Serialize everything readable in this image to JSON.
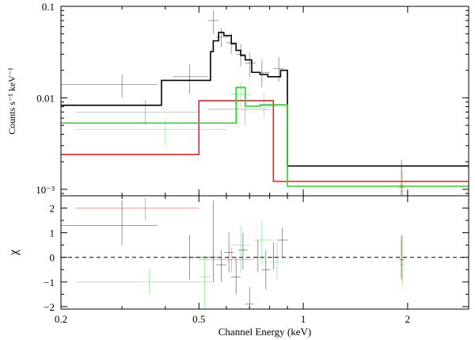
{
  "chart_data": [
    {
      "type": "step",
      "panel": "top",
      "xscale": "log",
      "yscale": "log",
      "xlim": [
        0.2,
        3.0
      ],
      "ylim": [
        0.00085,
        0.1
      ],
      "ylabel": "Counts s⁻¹ keV⁻¹",
      "yticks": [
        {
          "value": 0.1,
          "label": "0.1"
        },
        {
          "value": 0.01,
          "label": "0.01"
        },
        {
          "value": 0.001,
          "label": "10⁻³"
        }
      ],
      "series": [
        {
          "name": "model-black",
          "color": "#000000",
          "edges": [
            0.2,
            0.39,
            0.54,
            0.55,
            0.57,
            0.59,
            0.62,
            0.64,
            0.66,
            0.68,
            0.71,
            0.75,
            0.79,
            0.86,
            0.9,
            3.0
          ],
          "values": [
            0.0083,
            0.0155,
            0.032,
            0.042,
            0.052,
            0.048,
            0.039,
            0.033,
            0.029,
            0.026,
            0.019,
            0.018,
            0.017,
            0.02,
            0.0018
          ]
        },
        {
          "name": "model-red",
          "color": "#d62728",
          "edges": [
            0.2,
            0.5,
            0.82,
            3.0
          ],
          "values": [
            0.0024,
            0.0093,
            0.00122
          ]
        },
        {
          "name": "model-green",
          "color": "#22dd22",
          "edges": [
            0.2,
            0.64,
            0.68,
            0.75,
            0.9,
            3.0
          ],
          "values": [
            0.0053,
            0.013,
            0.0081,
            0.0084,
            0.00108
          ]
        }
      ],
      "data": [
        {
          "color": "#000000",
          "points": [
            {
              "x": 0.3,
              "xlo": 0.2,
              "xhi": 0.38,
              "y": 0.014,
              "ylo": 0.01,
              "yhi": 0.018
            },
            {
              "x": 0.47,
              "xlo": 0.42,
              "xhi": 0.53,
              "y": 0.017,
              "ylo": 0.011,
              "yhi": 0.023
            },
            {
              "x": 0.55,
              "xlo": 0.53,
              "xhi": 0.57,
              "y": 0.07,
              "ylo": 0.05,
              "yhi": 0.09
            },
            {
              "x": 0.58,
              "xlo": 0.56,
              "xhi": 0.61,
              "y": 0.046,
              "ylo": 0.036,
              "yhi": 0.058
            },
            {
              "x": 0.62,
              "xlo": 0.6,
              "xhi": 0.64,
              "y": 0.04,
              "ylo": 0.03,
              "yhi": 0.051
            },
            {
              "x": 0.66,
              "xlo": 0.64,
              "xhi": 0.68,
              "y": 0.03,
              "ylo": 0.022,
              "yhi": 0.039
            },
            {
              "x": 0.7,
              "xlo": 0.68,
              "xhi": 0.73,
              "y": 0.024,
              "ylo": 0.017,
              "yhi": 0.031
            },
            {
              "x": 0.76,
              "xlo": 0.73,
              "xhi": 0.8,
              "y": 0.019,
              "ylo": 0.013,
              "yhi": 0.026
            },
            {
              "x": 0.85,
              "xlo": 0.82,
              "xhi": 0.88,
              "y": 0.021,
              "ylo": 0.015,
              "yhi": 0.028
            },
            {
              "x": 1.92,
              "xlo": 1.9,
              "xhi": 1.95,
              "y": 0.0011,
              "ylo": 0.0007,
              "yhi": 0.0021
            }
          ]
        },
        {
          "color": "#d62728",
          "points": [
            {
              "x": 0.35,
              "xlo": 0.22,
              "xhi": 0.5,
              "y": 0.007,
              "ylo": 0.005,
              "yhi": 0.0095
            },
            {
              "x": 0.68,
              "xlo": 0.53,
              "xhi": 0.8,
              "y": 0.0075,
              "ylo": 0.005,
              "yhi": 0.01
            },
            {
              "x": 1.92,
              "xlo": 1.88,
              "xhi": 1.96,
              "y": 0.00105,
              "ylo": 0.0006,
              "yhi": 0.0018
            }
          ]
        },
        {
          "color": "#22dd22",
          "points": [
            {
              "x": 0.4,
              "xlo": 0.22,
              "xhi": 0.6,
              "y": 0.0045,
              "ylo": 0.003,
              "yhi": 0.006
            },
            {
              "x": 0.66,
              "xlo": 0.62,
              "xhi": 0.7,
              "y": 0.011,
              "ylo": 0.008,
              "yhi": 0.015
            },
            {
              "x": 0.77,
              "xlo": 0.72,
              "xhi": 0.83,
              "y": 0.0082,
              "ylo": 0.006,
              "yhi": 0.011
            },
            {
              "x": 1.93,
              "xlo": 1.9,
              "xhi": 1.96,
              "y": 0.00095,
              "ylo": 0.0006,
              "yhi": 0.0016
            }
          ]
        }
      ]
    },
    {
      "type": "scatter-errorbar",
      "panel": "bottom",
      "xscale": "log",
      "xlim": [
        0.2,
        3.0
      ],
      "ylim": [
        -2.1,
        2.5
      ],
      "xlabel": "Channel Energy (keV)",
      "ylabel": "χ",
      "xticks": [
        {
          "value": 0.2,
          "label": "0.2"
        },
        {
          "value": 0.5,
          "label": "0.5"
        },
        {
          "value": 1,
          "label": "1"
        },
        {
          "value": 2,
          "label": "2"
        }
      ],
      "yticks": [
        {
          "value": 2,
          "label": "2"
        },
        {
          "value": 1,
          "label": "1"
        },
        {
          "value": 0,
          "label": "0"
        },
        {
          "value": -1,
          "label": "−1"
        },
        {
          "value": -2,
          "label": "−2"
        }
      ],
      "reference_line": {
        "y": 0,
        "style": "dashed"
      },
      "data": [
        {
          "color": "#000000",
          "points": [
            {
              "x": 0.3,
              "xlo": 0.2,
              "xhi": 0.38,
              "y": 1.3,
              "ylo": 0.5,
              "yhi": 2.3
            },
            {
              "x": 0.47,
              "xlo": 0.42,
              "xhi": 0.53,
              "y": 0.0,
              "ylo": -0.9,
              "yhi": 0.9
            },
            {
              "x": 0.55,
              "xlo": 0.53,
              "xhi": 0.57,
              "y": 0.0,
              "ylo": -1.0,
              "yhi": 2.3
            },
            {
              "x": 0.58,
              "xlo": 0.56,
              "xhi": 0.6,
              "y": -0.3,
              "ylo": -1.0,
              "yhi": 0.3
            },
            {
              "x": 0.61,
              "xlo": 0.59,
              "xhi": 0.63,
              "y": 0.2,
              "ylo": -0.6,
              "yhi": 1.0
            },
            {
              "x": 0.64,
              "xlo": 0.62,
              "xhi": 0.66,
              "y": -0.8,
              "ylo": -1.5,
              "yhi": 0.0
            },
            {
              "x": 0.67,
              "xlo": 0.65,
              "xhi": 0.69,
              "y": 0.3,
              "ylo": -0.5,
              "yhi": 1.0
            },
            {
              "x": 0.7,
              "xlo": 0.68,
              "xhi": 0.72,
              "y": -1.9,
              "ylo": -2.1,
              "yhi": -1.2
            },
            {
              "x": 0.74,
              "xlo": 0.72,
              "xhi": 0.77,
              "y": 0.0,
              "ylo": -0.6,
              "yhi": 0.7
            },
            {
              "x": 0.78,
              "xlo": 0.76,
              "xhi": 0.8,
              "y": -0.5,
              "ylo": -1.3,
              "yhi": 0.3
            },
            {
              "x": 0.82,
              "xlo": 0.8,
              "xhi": 0.84,
              "y": 0.0,
              "ylo": -0.5,
              "yhi": 0.6
            },
            {
              "x": 0.87,
              "xlo": 0.84,
              "xhi": 0.9,
              "y": 0.7,
              "ylo": 0.0,
              "yhi": 1.2
            },
            {
              "x": 1.92,
              "xlo": 1.9,
              "xhi": 1.95,
              "y": -0.1,
              "ylo": -0.9,
              "yhi": 0.9
            }
          ]
        },
        {
          "color": "#d62728",
          "points": [
            {
              "x": 0.35,
              "xlo": 0.22,
              "xhi": 0.5,
              "y": 2.0,
              "ylo": 1.5,
              "yhi": 2.4
            },
            {
              "x": 0.62,
              "xlo": 0.5,
              "xhi": 0.72,
              "y": -0.1,
              "ylo": -0.6,
              "yhi": 0.4
            },
            {
              "x": 1.92,
              "xlo": 1.88,
              "xhi": 1.96,
              "y": -0.1,
              "ylo": -0.8,
              "yhi": 0.8
            }
          ]
        },
        {
          "color": "#22dd22",
          "points": [
            {
              "x": 0.36,
              "xlo": 0.22,
              "xhi": 0.55,
              "y": -1.0,
              "ylo": -1.5,
              "yhi": -0.5
            },
            {
              "x": 0.52,
              "xlo": 0.5,
              "xhi": 0.54,
              "y": -0.8,
              "ylo": -2.1,
              "yhi": 0.0
            },
            {
              "x": 0.66,
              "xlo": 0.62,
              "xhi": 0.7,
              "y": 0.5,
              "ylo": -0.6,
              "yhi": 1.3
            },
            {
              "x": 0.76,
              "xlo": 0.72,
              "xhi": 0.82,
              "y": 0.7,
              "ylo": -0.3,
              "yhi": 1.5
            },
            {
              "x": 0.84,
              "xlo": 0.8,
              "xhi": 0.88,
              "y": -0.2,
              "ylo": -0.9,
              "yhi": 0.6
            },
            {
              "x": 1.93,
              "xlo": 1.9,
              "xhi": 1.96,
              "y": -0.3,
              "ylo": -1.2,
              "yhi": 0.9
            }
          ]
        }
      ]
    }
  ]
}
